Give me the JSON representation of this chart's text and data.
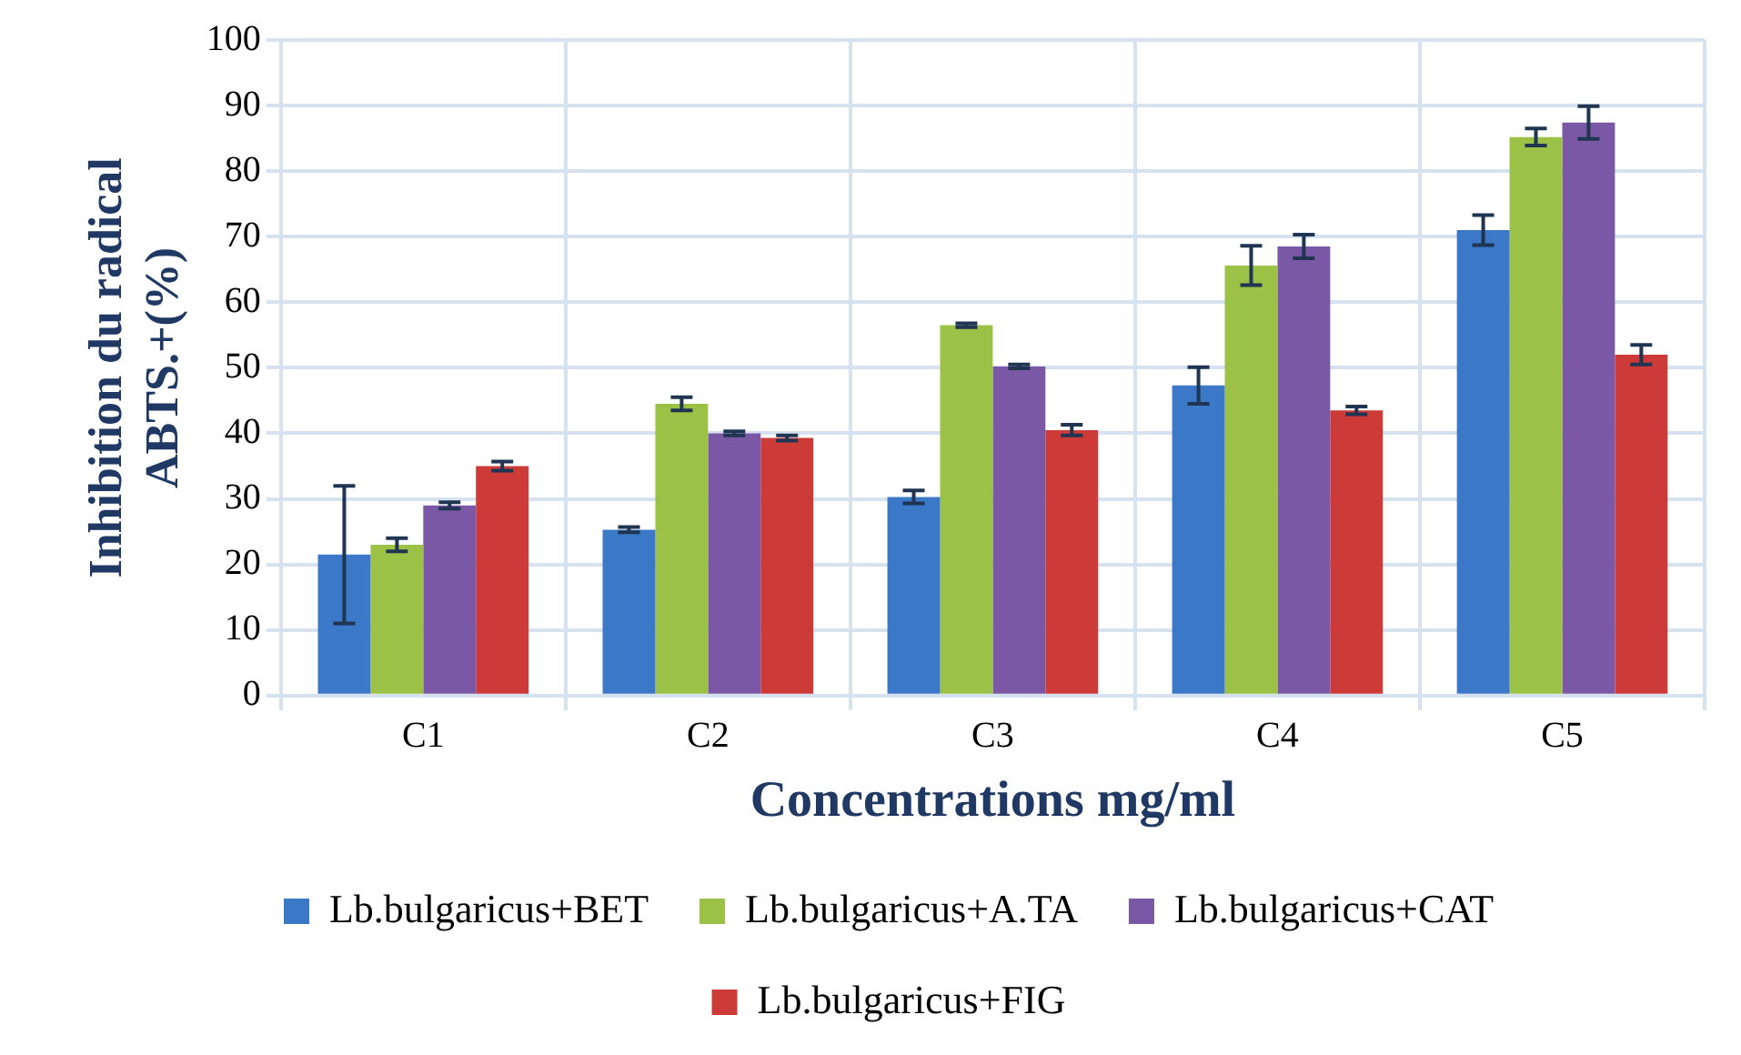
{
  "chart_data": {
    "type": "bar",
    "xlabel": "Concentrations mg/ml",
    "ylabel": "Inhibition du radical ABTS.+(%)",
    "categories": [
      "C1",
      "C2",
      "C3",
      "C4",
      "C5"
    ],
    "series": [
      {
        "name": "Lb.bulgaricus+BET",
        "color": "#3b78c8",
        "values": [
          21.5,
          25.3,
          30.3,
          47.3,
          71
        ],
        "errors": [
          10.5,
          0.4,
          1,
          2.8,
          2.3
        ]
      },
      {
        "name": "Lb.bulgaricus+A.TA",
        "color": "#9bc246",
        "values": [
          23,
          44.5,
          56.5,
          65.6,
          85.2
        ],
        "errors": [
          1,
          1,
          0.3,
          3,
          1.3
        ]
      },
      {
        "name": "Lb.bulgaricus+CAT",
        "color": "#7b58a6",
        "values": [
          29,
          40,
          50.2,
          68.5,
          87.4
        ],
        "errors": [
          0.5,
          0.3,
          0.3,
          1.8,
          2.5
        ]
      },
      {
        "name": "Lb.bulgaricus+FIG",
        "color": "#cc3b38",
        "values": [
          35,
          39.3,
          40.5,
          43.5,
          52
        ],
        "errors": [
          0.7,
          0.4,
          0.8,
          0.6,
          1.5
        ]
      }
    ],
    "ylim": [
      0,
      100
    ],
    "yticks": [
      0,
      10,
      20,
      30,
      40,
      50,
      60,
      70,
      80,
      90,
      100
    ],
    "grid": true,
    "legend": "bottom"
  }
}
